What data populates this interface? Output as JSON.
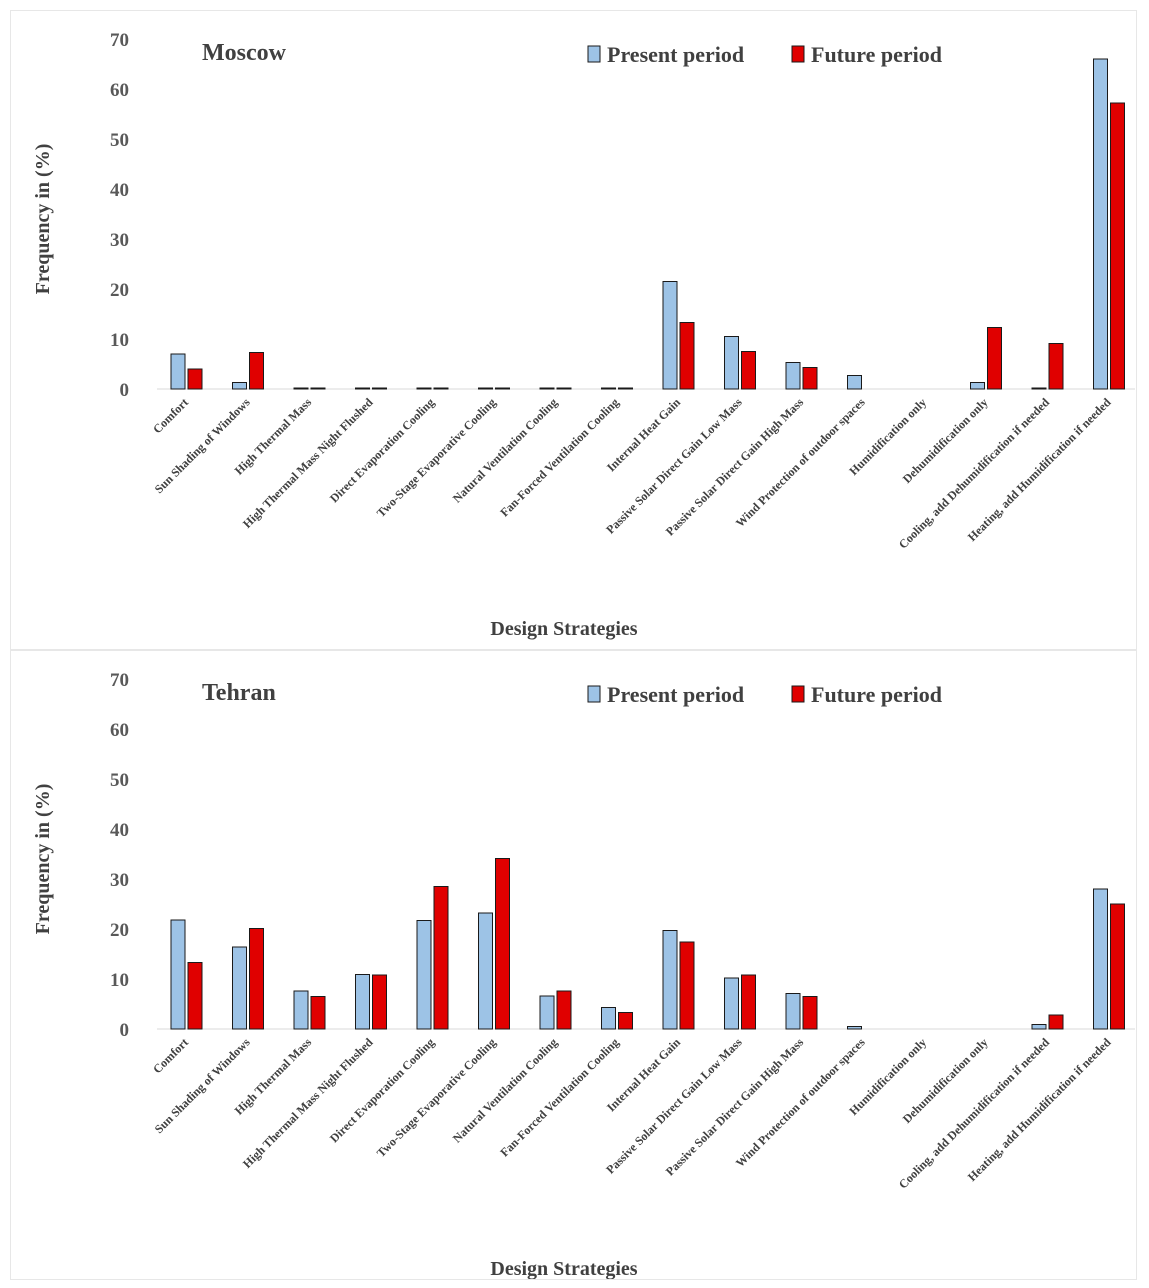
{
  "chart_data": [
    {
      "type": "bar",
      "title": "Moscow",
      "xlabel": "Design Strategies",
      "ylabel": "Frequency in (%)",
      "ylim": [
        0,
        70
      ],
      "yticks": [
        "0",
        "10",
        "20",
        "30",
        "40",
        "50",
        "60",
        "70"
      ],
      "grid": false,
      "legend_position": "top-right",
      "categories": [
        "Comfort",
        "Sun Shading of Windows",
        "High Thermal Mass",
        "High Thermal Mass Night Flushed",
        "Direct Evaporation Cooling",
        "Two-Stage Evaporative Cooling",
        "Natural Ventilation Cooling",
        "Fan-Forced Ventilation Cooling",
        "Internal Heat Gain",
        "Passive Solar Direct Gain Low Mass",
        "Passive Solar Direct Gain High Mass",
        "Wind Protection of outdoor spaces",
        "Humidification only",
        "Dehumidification only",
        "Cooling, add Dehumidification if needed",
        "Heating, add Humidification if needed"
      ],
      "series": [
        {
          "name": "Present period",
          "color": "#9dc3e6",
          "values": [
            7,
            1.3,
            0.2,
            0.2,
            0.2,
            0.2,
            0.2,
            0.2,
            21.5,
            10.5,
            5.3,
            2.7,
            0,
            1.3,
            0.2,
            66
          ]
        },
        {
          "name": "Future period",
          "color": "#e00000",
          "values": [
            4,
            7.3,
            0.2,
            0.2,
            0.2,
            0.2,
            0.2,
            0.2,
            13.3,
            7.5,
            4.3,
            0,
            0,
            12.3,
            9.1,
            57.2
          ]
        }
      ]
    },
    {
      "type": "bar",
      "title": "Tehran",
      "xlabel": "Design Strategies",
      "ylabel": "Frequency in (%)",
      "ylim": [
        0,
        70
      ],
      "yticks": [
        "0",
        "10",
        "20",
        "30",
        "40",
        "50",
        "60",
        "70"
      ],
      "grid": false,
      "legend_position": "top-right",
      "categories": [
        "Comfort",
        "Sun Shading of Windows",
        "High Thermal Mass",
        "High Thermal Mass Night Flushed",
        "Direct Evaporation Cooling",
        "Two-Stage Evaporative Cooling",
        "Natural Ventilation Cooling",
        "Fan-Forced Ventilation Cooling",
        "Internal Heat Gain",
        "Passive Solar Direct Gain Low Mass",
        "Passive Solar Direct Gain High Mass",
        "Wind Protection of outdoor spaces",
        "Humidification only",
        "Dehumidification only",
        "Cooling, add Dehumidification if needed",
        "Heating, add Humidification if needed"
      ],
      "series": [
        {
          "name": "Present period",
          "color": "#9dc3e6",
          "values": [
            21.8,
            16.4,
            7.6,
            10.9,
            21.7,
            23.2,
            6.6,
            4.3,
            19.7,
            10.2,
            7.1,
            0.5,
            0,
            0,
            0.9,
            28
          ]
        },
        {
          "name": "Future period",
          "color": "#e00000",
          "values": [
            13.3,
            20.1,
            6.5,
            10.8,
            28.5,
            34.1,
            7.6,
            3.3,
            17.4,
            10.8,
            6.5,
            0,
            0,
            0,
            2.8,
            25
          ]
        }
      ]
    }
  ]
}
